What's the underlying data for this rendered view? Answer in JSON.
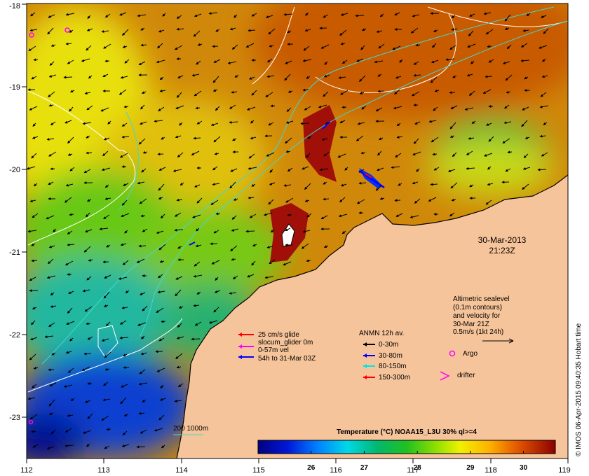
{
  "map": {
    "x_ticks": [
      "112",
      "113",
      "114",
      "115",
      "116",
      "117",
      "118",
      "119"
    ],
    "y_ticks": [
      "-18",
      "-19",
      "-20",
      "-21",
      "-22",
      "-23"
    ],
    "date_label": "30-Mar-2013",
    "time_label": "21:23Z",
    "side_caption": "© IMOS 06-Apr-2015 09:40:35 Hobart time"
  },
  "glider_legend": {
    "items": [
      {
        "label": "25 cm/s glide",
        "color": "#ff0000"
      },
      {
        "label": "slocum_glider 0m",
        "color": "#ff00ff"
      },
      {
        "label": "0-57m vel",
        "color": "#ff00ff"
      },
      {
        "label": "54h to 31-Mar 03Z",
        "color": "#0000ff"
      }
    ]
  },
  "anmn_legend": {
    "title": "ANMN 12h av.",
    "items": [
      {
        "label": "0-30m",
        "color": "#000000"
      },
      {
        "label": "30-80m",
        "color": "#0000ff"
      },
      {
        "label": "80-150m",
        "color": "#00e5e5"
      },
      {
        "label": "150-300m",
        "color": "#ff0000"
      }
    ]
  },
  "altimetry_note": {
    "lines": [
      "Altimetric sealevel",
      "(0.1m contours)",
      "and velocity for",
      "30-Mar 21Z",
      "0.5m/s (1kt 24h)"
    ]
  },
  "markers": {
    "argo_label": "Argo",
    "drifter_label": "drifter"
  },
  "isobath_label": "200  1000m",
  "colorbar": {
    "title": "Temperature (°C) NOAA15_L3U 30% ql>=4",
    "ticks": [
      "26",
      "27",
      "28",
      "29",
      "30"
    ],
    "min": 25.0,
    "max": 30.6
  },
  "colors": {
    "land": "#f6c49a",
    "isobath": "#40d8d0",
    "contour": "#ffffff"
  }
}
